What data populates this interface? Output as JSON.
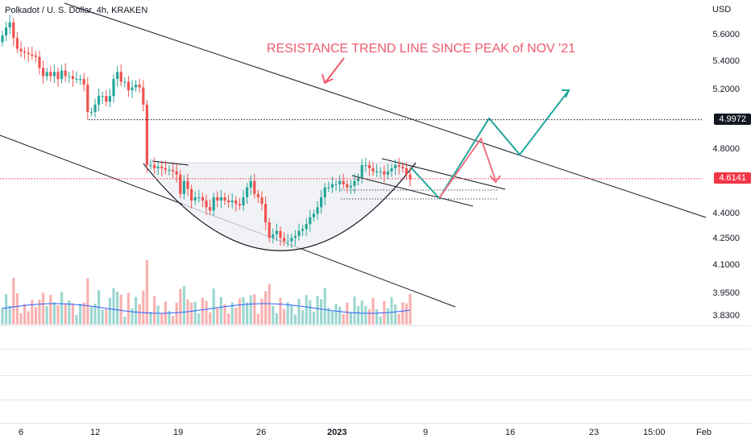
{
  "header": {
    "title": "Polkadot / U. S. Dollar, 4h, KRAKEN"
  },
  "price_axis": {
    "currency": "USD",
    "labels": [
      "5.6000",
      "5.4000",
      "5.2000",
      "4.8000",
      "4.4000",
      "4.2500",
      "4.1000",
      "3.9500",
      "3.8300"
    ]
  },
  "tags": {
    "resistance_level": "4.9972",
    "last_price": "4.6141"
  },
  "annotation": {
    "text": "RESISTANCE TREND LINE SINCE PEAK of NOV '21"
  },
  "time_axis": {
    "labels": [
      "6",
      "12",
      "19",
      "26",
      "2023",
      "9",
      "16",
      "23",
      "15:00",
      "Feb"
    ]
  },
  "colors": {
    "up": "#26a69a",
    "down": "#ef5350",
    "annotation": "#f05a6e",
    "projection_up": "#1fa89a",
    "projection_down": "#f07383",
    "volume_ma": "#2962ff",
    "tag_black": "#131722",
    "tag_red": "#f23645"
  },
  "chart_data": {
    "type": "candlestick",
    "symbol": "Polkadot / U. S. Dollar",
    "interval": "4h",
    "exchange": "KRAKEN",
    "y_scale": "log",
    "ylim": [
      3.8,
      5.75
    ],
    "closes": [
      5.6,
      5.66,
      5.7,
      5.58,
      5.5,
      5.48,
      5.47,
      5.46,
      5.45,
      5.44,
      5.36,
      5.3,
      5.33,
      5.3,
      5.33,
      5.28,
      5.34,
      5.3,
      5.3,
      5.28,
      5.28,
      5.28,
      5.24,
      5.05,
      5.05,
      5.1,
      5.16,
      5.16,
      5.12,
      5.16,
      5.28,
      5.33,
      5.26,
      5.26,
      5.2,
      5.22,
      5.24,
      5.22,
      5.1,
      4.7,
      4.7,
      4.68,
      4.69,
      4.68,
      4.67,
      4.67,
      4.66,
      4.64,
      4.52,
      4.6,
      4.55,
      4.48,
      4.5,
      4.5,
      4.48,
      4.44,
      4.42,
      4.5,
      4.48,
      4.5,
      4.48,
      4.47,
      4.48,
      4.46,
      4.45,
      4.5,
      4.56,
      4.6,
      4.52,
      4.5,
      4.46,
      4.35,
      4.26,
      4.28,
      4.3,
      4.26,
      4.24,
      4.24,
      4.26,
      4.27,
      4.3,
      4.31,
      4.34,
      4.38,
      4.4,
      4.44,
      4.5,
      4.56,
      4.56,
      4.58,
      4.58,
      4.6,
      4.58,
      4.56,
      4.57,
      4.6,
      4.62,
      4.7,
      4.7,
      4.68,
      4.66,
      4.66,
      4.66,
      4.64,
      4.66,
      4.68,
      4.7,
      4.69,
      4.68,
      4.64,
      4.61
    ],
    "volume_ma_note": "volume pane with moving average",
    "levels": [
      {
        "name": "resistance_level",
        "value": 4.9972,
        "style": "dotted"
      },
      {
        "name": "last_price",
        "value": 4.6141,
        "style": "dotted"
      }
    ],
    "x_tick_labels": [
      "6",
      "12",
      "19",
      "26",
      "2023",
      "9",
      "16",
      "23",
      "15:00",
      "Feb"
    ],
    "y_tick_labels": [
      5.6,
      5.4,
      5.2,
      4.8,
      4.4,
      4.25,
      4.1,
      3.95,
      3.83
    ],
    "annotations": [
      "RESISTANCE TREND LINE SINCE PEAK of NOV '21"
    ]
  }
}
